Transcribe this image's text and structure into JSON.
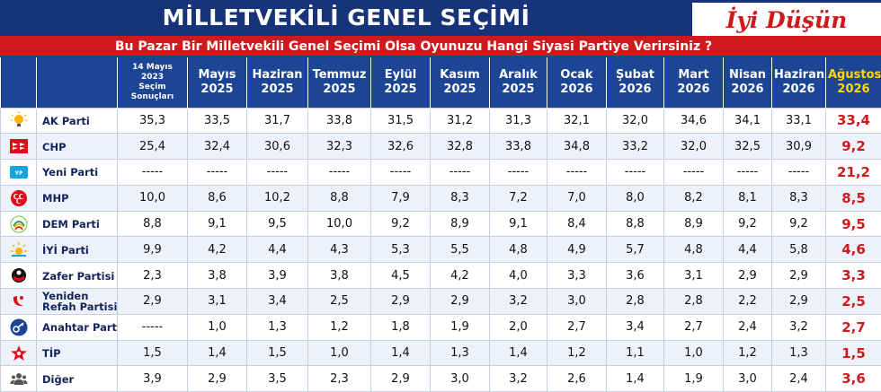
{
  "header": {
    "title": "MİLLETVEKİLİ GENEL SEÇİMİ",
    "brand": "İyi Düşün",
    "question": "Bu Pazar Bir Milletvekili Genel Seçimi Olsa Oyunuzu Hangi Siyasi Partiye Verirsiniz ?"
  },
  "columns": [
    {
      "line1": "14 Mayıs",
      "line2": "2023",
      "line3": "Seçim",
      "line4": "Sonuçları"
    },
    {
      "line1": "Mayıs",
      "line2": "2025"
    },
    {
      "line1": "Haziran",
      "line2": "2025"
    },
    {
      "line1": "Temmuz",
      "line2": "2025"
    },
    {
      "line1": "Eylül",
      "line2": "2025"
    },
    {
      "line1": "Kasım",
      "line2": "2025"
    },
    {
      "line1": "Aralık",
      "line2": "2025"
    },
    {
      "line1": "Ocak",
      "line2": "2026"
    },
    {
      "line1": "Şubat",
      "line2": "2026"
    },
    {
      "line1": "Mart",
      "line2": "2026"
    },
    {
      "line1": "Nisan",
      "line2": "2026"
    },
    {
      "line1": "Haziran",
      "line2": "2026"
    },
    {
      "line1": "Ağustos",
      "line2": "2026"
    }
  ],
  "rows": [
    {
      "party": "AK Parti",
      "icon": "ak-parti-bulb-icon",
      "values": [
        "35,3",
        "33,5",
        "31,7",
        "33,8",
        "31,5",
        "31,2",
        "31,3",
        "32,1",
        "32,0",
        "34,6",
        "34,1",
        "33,1",
        "33,4"
      ]
    },
    {
      "party": "CHP",
      "icon": "chp-six-arrows-icon",
      "values": [
        "25,4",
        "32,4",
        "30,6",
        "32,3",
        "32,6",
        "32,8",
        "33,8",
        "34,8",
        "33,2",
        "32,0",
        "32,5",
        "30,9",
        "9,2"
      ]
    },
    {
      "party": "Yeni Parti",
      "icon": "yeni-parti-icon",
      "values": [
        "-----",
        "-----",
        "-----",
        "-----",
        "-----",
        "-----",
        "-----",
        "-----",
        "-----",
        "-----",
        "-----",
        "-----",
        "21,2"
      ]
    },
    {
      "party": "MHP",
      "icon": "mhp-crescents-icon",
      "values": [
        "10,0",
        "8,6",
        "10,2",
        "8,8",
        "7,9",
        "8,3",
        "7,2",
        "7,0",
        "8,0",
        "8,2",
        "8,1",
        "8,3",
        "8,5"
      ]
    },
    {
      "party": "DEM Parti",
      "icon": "dem-parti-icon",
      "values": [
        "8,8",
        "9,1",
        "9,5",
        "10,0",
        "9,2",
        "8,9",
        "9,1",
        "8,4",
        "8,8",
        "8,9",
        "9,2",
        "9,2",
        "9,5"
      ]
    },
    {
      "party": "İYİ Parti",
      "icon": "iyi-parti-sun-icon",
      "values": [
        "9,9",
        "4,2",
        "4,4",
        "4,3",
        "5,3",
        "5,5",
        "4,8",
        "4,9",
        "5,7",
        "4,8",
        "4,4",
        "5,8",
        "4,6"
      ]
    },
    {
      "party": "Zafer Partisi",
      "icon": "zafer-partisi-icon",
      "values": [
        "2,3",
        "3,8",
        "3,9",
        "3,8",
        "4,5",
        "4,2",
        "4,0",
        "3,3",
        "3,6",
        "3,1",
        "2,9",
        "2,9",
        "3,3"
      ]
    },
    {
      "party": "Yeniden Refah Partisi",
      "icon": "yeniden-refah-icon",
      "values": [
        "2,9",
        "3,1",
        "3,4",
        "2,5",
        "2,9",
        "2,9",
        "3,2",
        "3,0",
        "2,8",
        "2,8",
        "2,2",
        "2,9",
        "2,5"
      ]
    },
    {
      "party": "Anahtar Parti",
      "icon": "anahtar-parti-key-icon",
      "values": [
        "-----",
        "1,0",
        "1,3",
        "1,2",
        "1,8",
        "1,9",
        "2,0",
        "2,7",
        "3,4",
        "2,7",
        "2,4",
        "3,2",
        "2,7"
      ]
    },
    {
      "party": "TİP",
      "icon": "tip-star-icon",
      "values": [
        "1,5",
        "1,4",
        "1,5",
        "1,0",
        "1,4",
        "1,3",
        "1,4",
        "1,2",
        "1,1",
        "1,0",
        "1,2",
        "1,3",
        "1,5"
      ]
    },
    {
      "party": "Diğer",
      "icon": "people-group-icon",
      "values": [
        "3,9",
        "2,9",
        "3,5",
        "2,3",
        "2,9",
        "3,0",
        "3,2",
        "2,6",
        "1,4",
        "1,9",
        "3,0",
        "2,4",
        "3,6"
      ]
    }
  ],
  "colors": {
    "navy": "#17337a",
    "header_blue": "#1d4596",
    "red": "#d0191d",
    "current_header": "#ffd800"
  }
}
